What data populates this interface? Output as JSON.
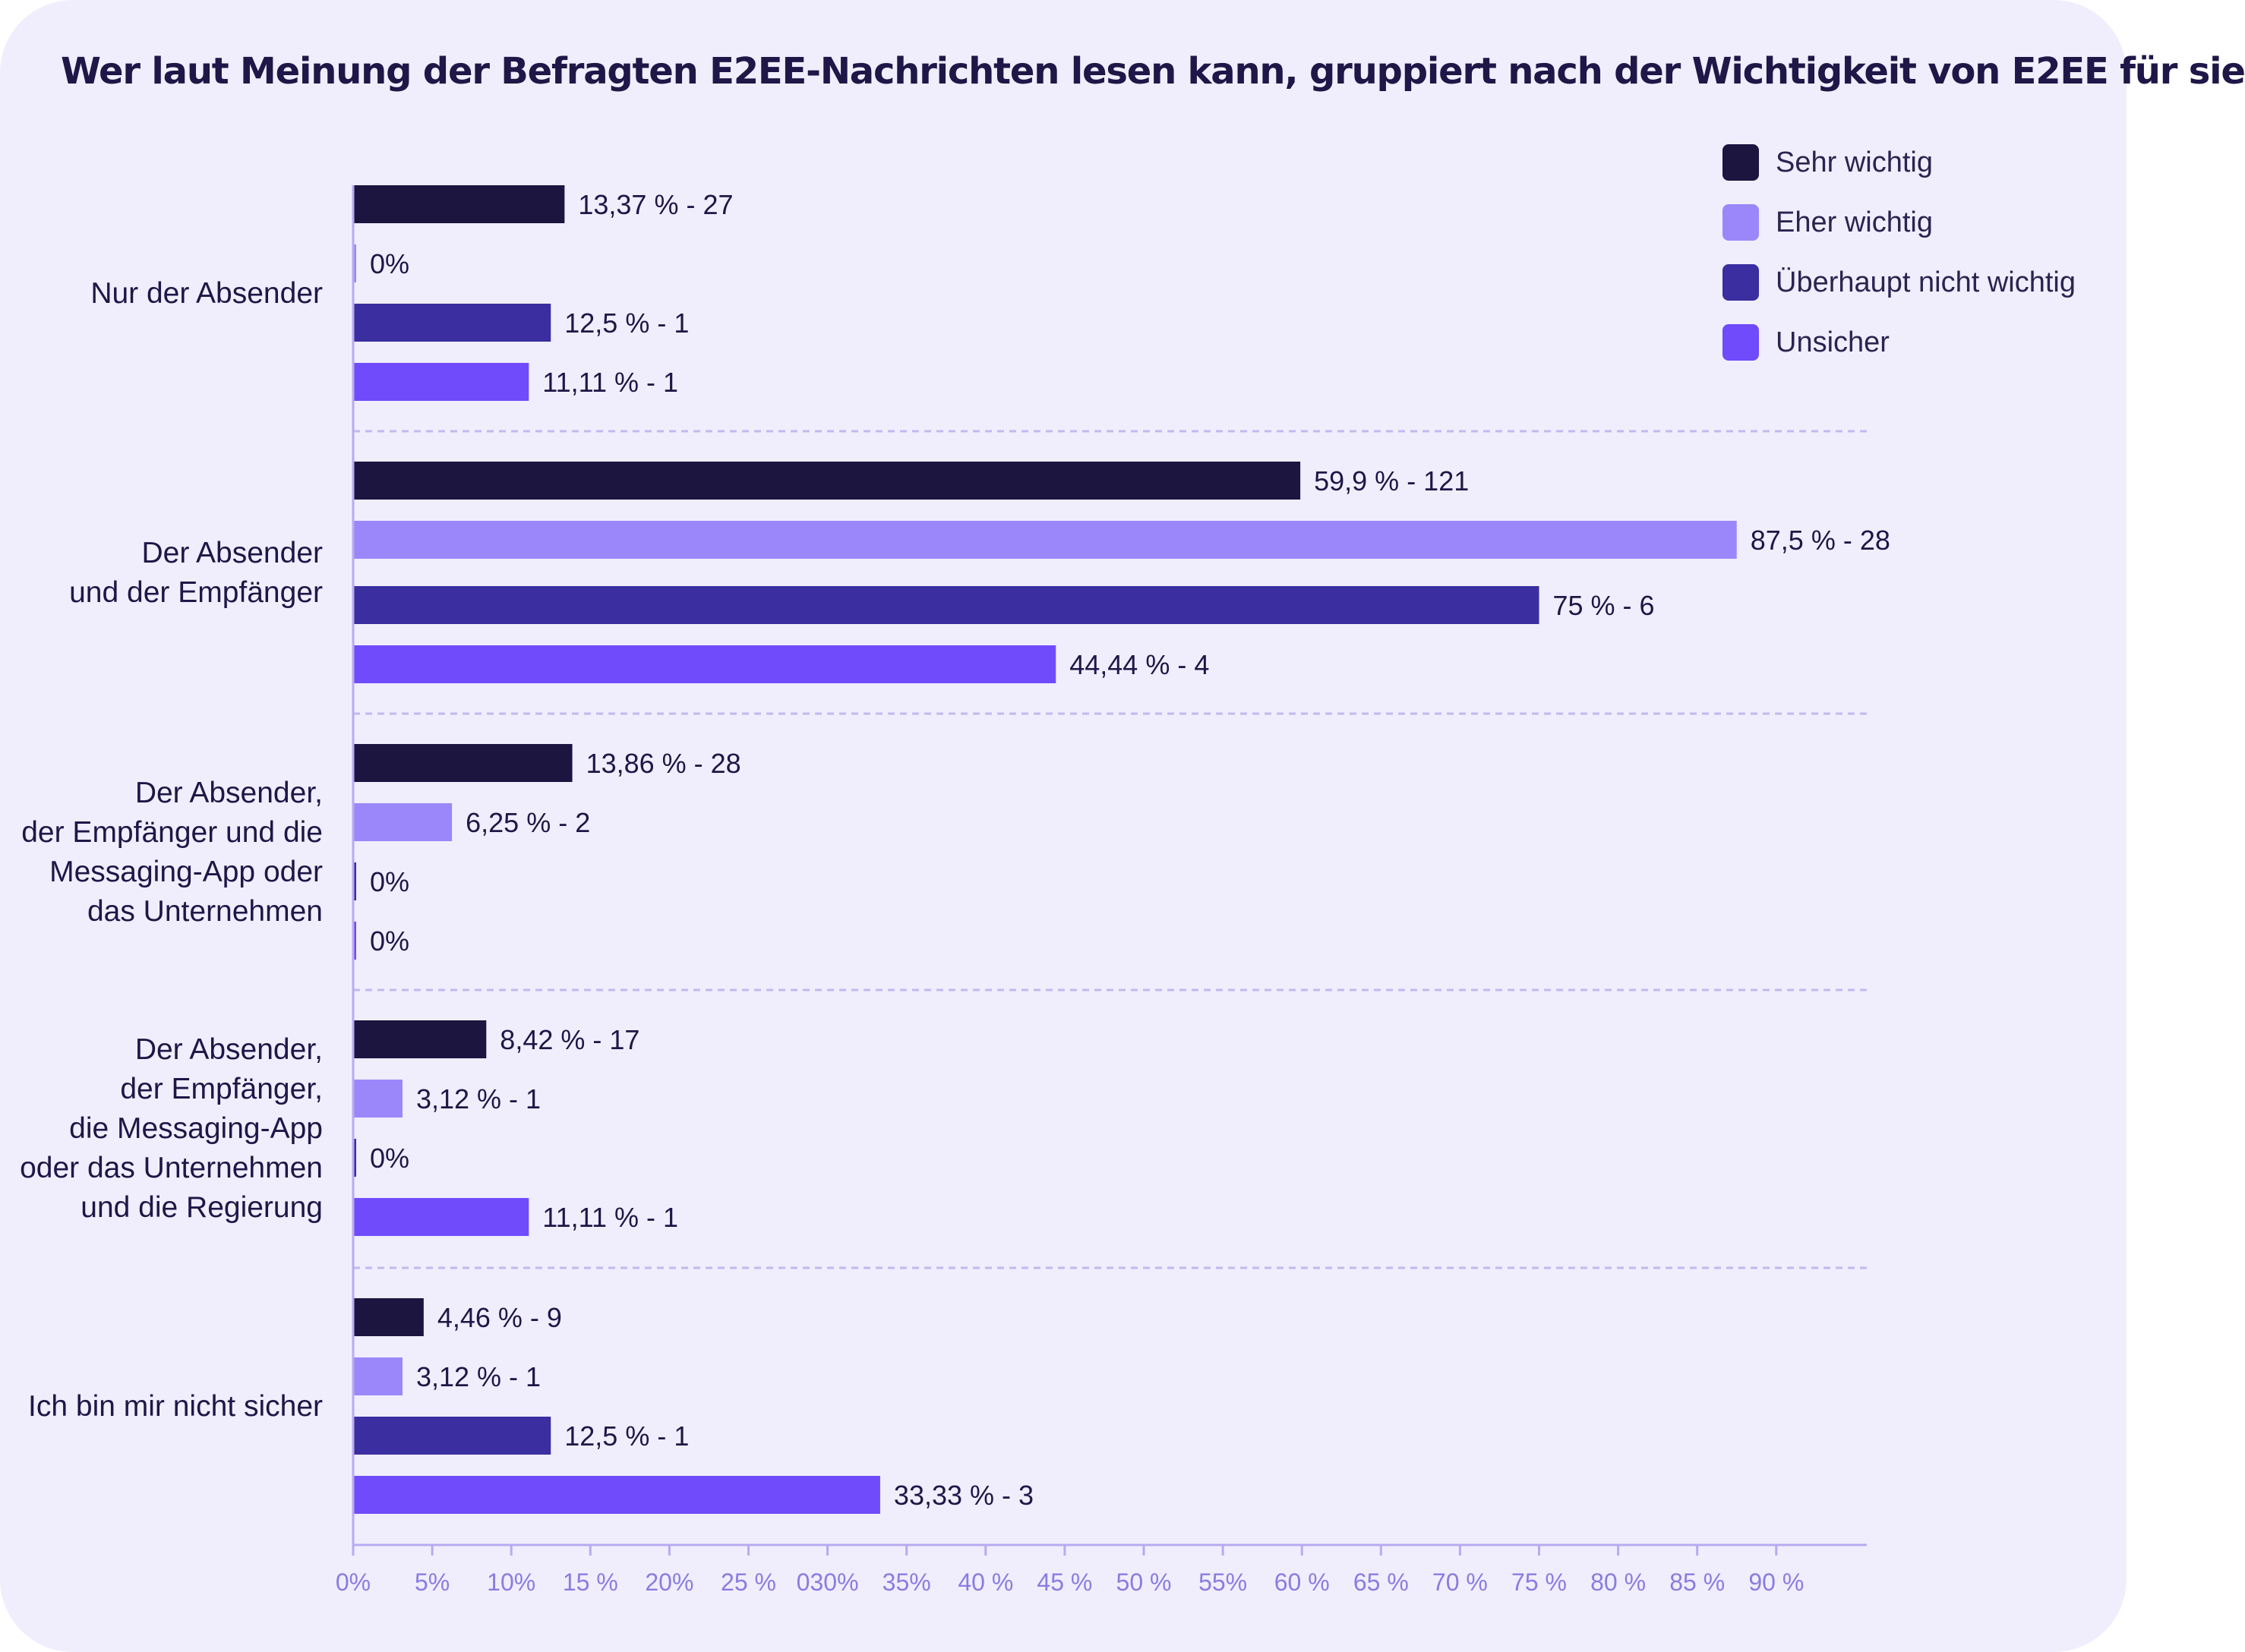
{
  "title": "Wer laut Meinung der Befragten E2EE-Nachrichten lesen kann, gruppiert nach der Wichtigkeit von E2EE für sie",
  "legend": [
    {
      "label": "Sehr wichtig",
      "color": "#1c1540"
    },
    {
      "label": "Eher wichtig",
      "color": "#9b87fa"
    },
    {
      "label": "Überhaupt nicht wichtig",
      "color": "#3a2ea0"
    },
    {
      "label": "Unsicher",
      "color": "#6f4bfb"
    }
  ],
  "chart_data": {
    "type": "bar",
    "orientation": "horizontal",
    "categories": [
      [
        "Nur der Absender"
      ],
      [
        "Der Absender",
        "und der Empfänger"
      ],
      [
        "Der Absender,",
        "der Empfänger und die",
        "Messaging-App oder",
        "das Unternehmen"
      ],
      [
        "Der Absender,",
        "der Empfänger,",
        "die Messaging-App",
        "oder das Unternehmen",
        "und die Regierung"
      ],
      [
        "Ich bin mir nicht sicher"
      ]
    ],
    "series": [
      {
        "name": "Sehr wichtig",
        "color": "#1c1540",
        "values": [
          13.37,
          59.9,
          13.86,
          8.42,
          4.46
        ],
        "labels": [
          "13,37 % - 27",
          "59,9 % - 121",
          "13,86 % - 28",
          "8,42 % - 17",
          "4,46 % - 9"
        ]
      },
      {
        "name": "Eher wichtig",
        "color": "#9b87fa",
        "values": [
          0,
          87.5,
          6.25,
          3.12,
          3.12
        ],
        "labels": [
          "0%",
          "87,5 % - 28",
          "6,25 % - 2",
          "3,12 % - 1",
          "3,12 % - 1"
        ]
      },
      {
        "name": "Überhaupt nicht wichtig",
        "color": "#3a2ea0",
        "values": [
          12.5,
          75,
          0,
          0,
          12.5
        ],
        "labels": [
          "12,5 % - 1",
          "75 % - 6",
          "0%",
          "0%",
          "12,5 % - 1"
        ]
      },
      {
        "name": "Unsicher",
        "color": "#6f4bfb",
        "values": [
          11.11,
          44.44,
          0,
          11.11,
          33.33
        ],
        "labels": [
          "11,11 % - 1",
          "44,44 % - 4",
          "0%",
          "11,11 % - 1",
          "33,33 % - 3"
        ]
      }
    ],
    "xlim": [
      0,
      96
    ],
    "xticks": [
      "0%",
      "5%",
      "10%",
      "15 %",
      "20%",
      "25 %",
      "030%",
      "35%",
      "40 %",
      "45 %",
      "50 %",
      "55%",
      "60 %",
      "65 %",
      "70 %",
      "75 %",
      "80 %",
      "85 %",
      "90 %"
    ],
    "grid": "dashed separators between groups",
    "legend_position": "top-right"
  }
}
